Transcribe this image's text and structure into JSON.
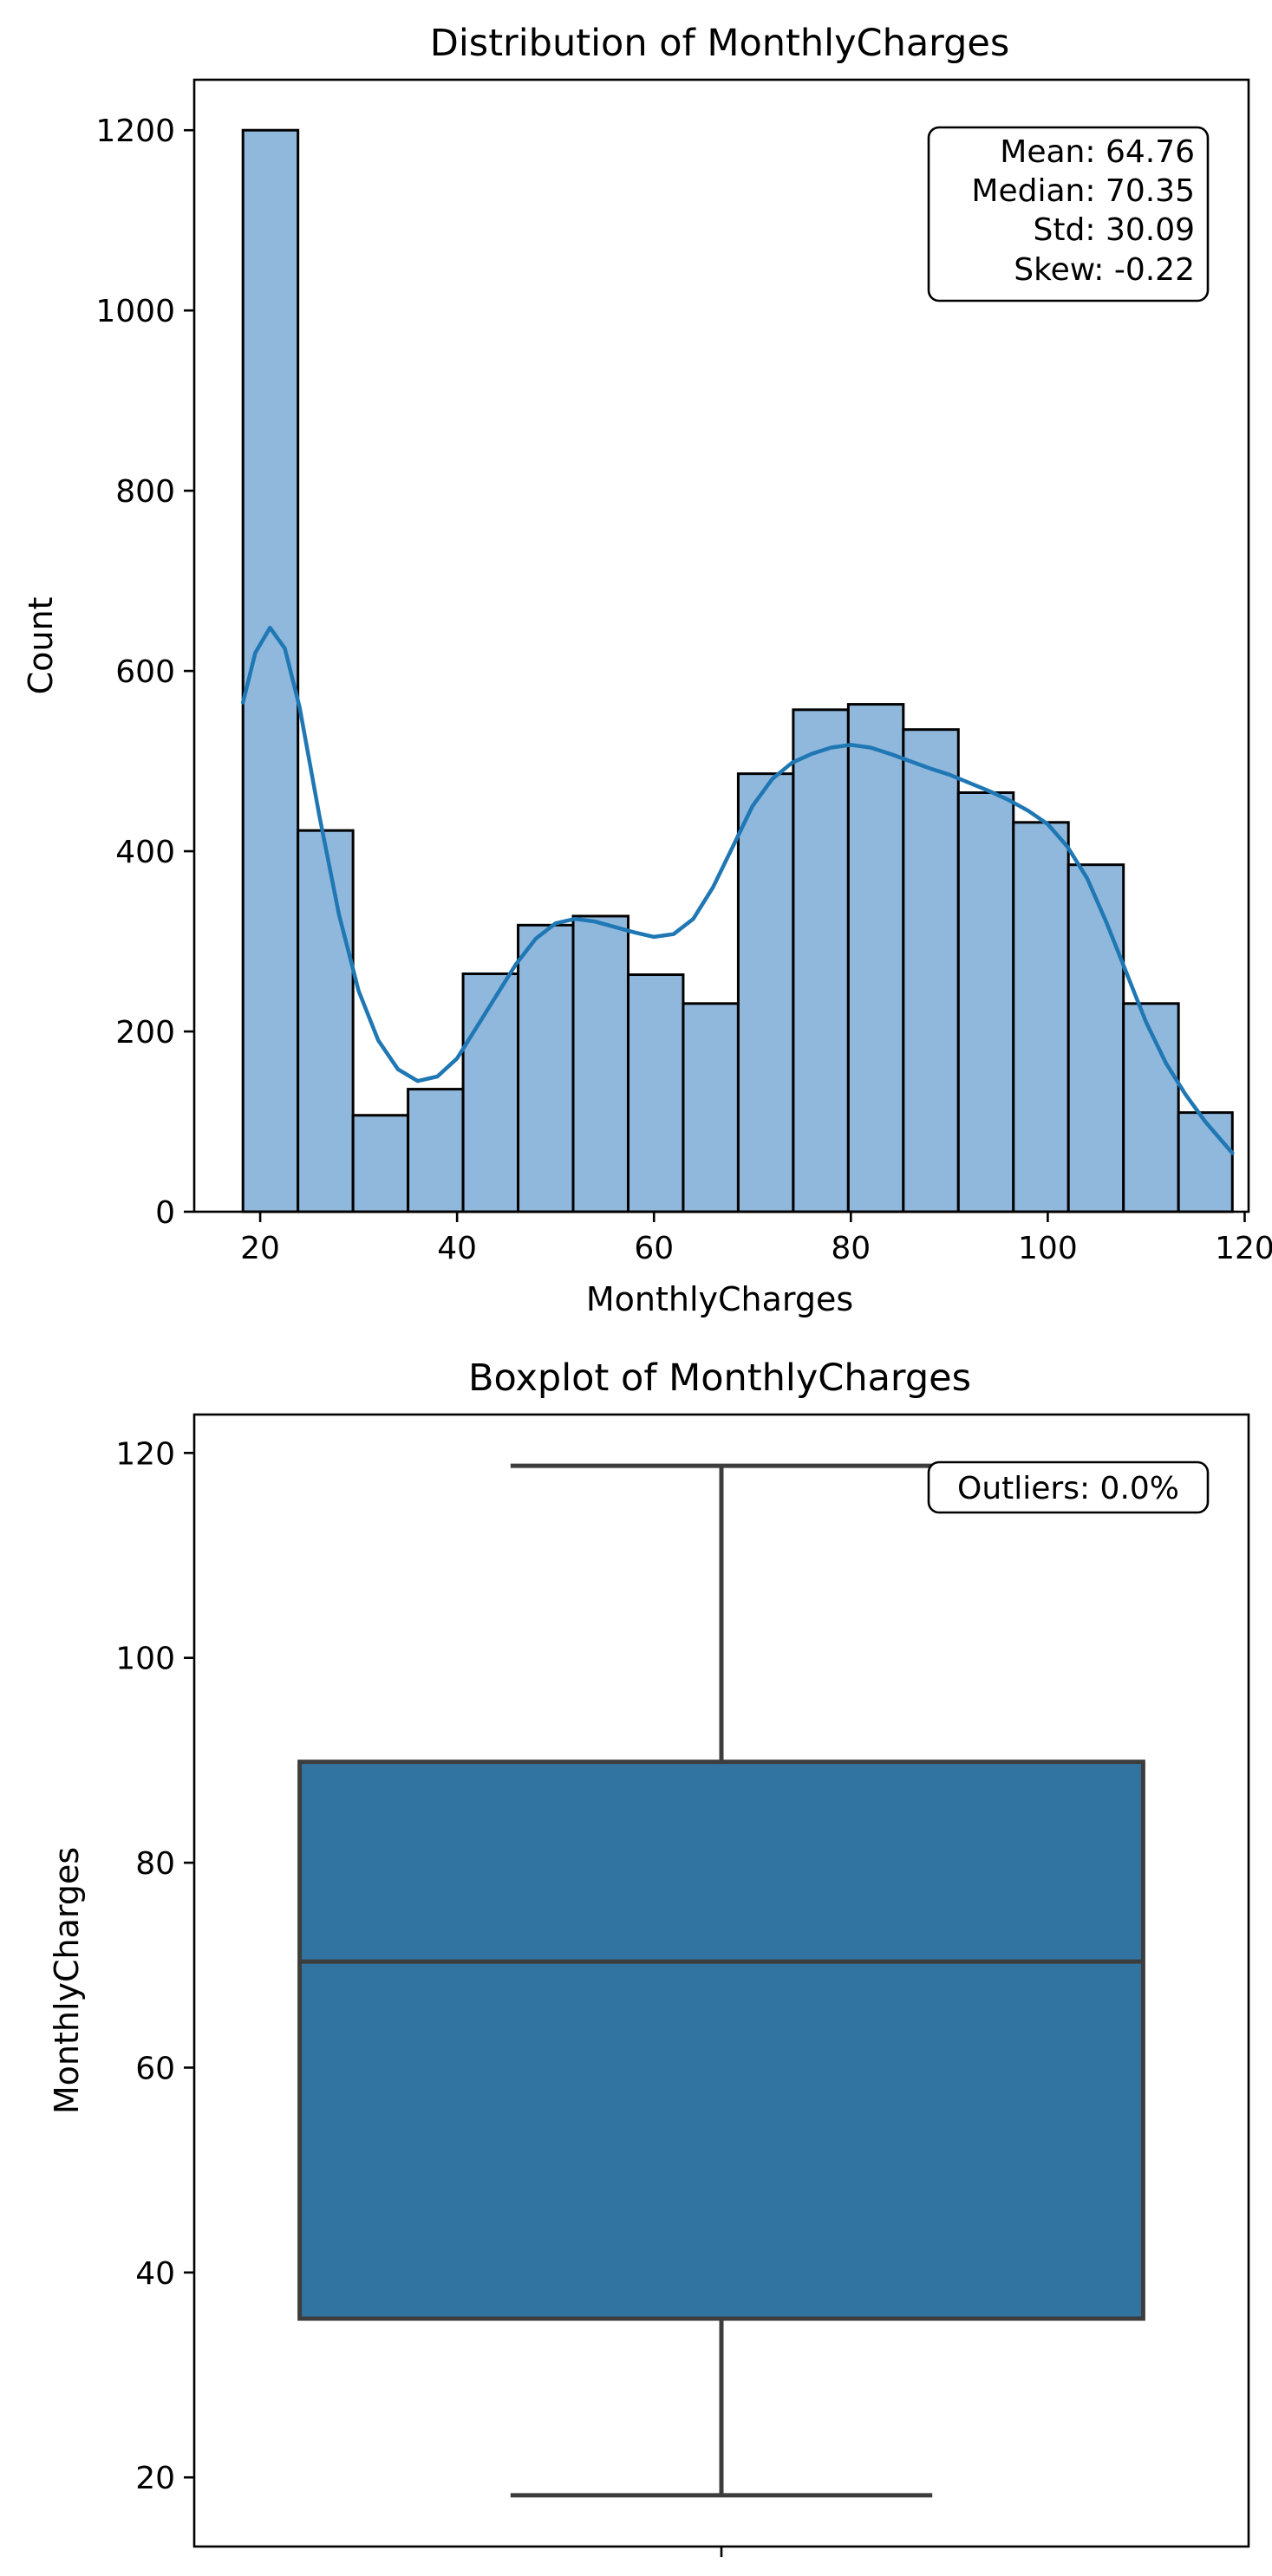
{
  "chart_data": [
    {
      "type": "bar",
      "title": "Distribution of MonthlyCharges",
      "xlabel": "MonthlyCharges",
      "ylabel": "Count",
      "xlim": [
        13.3,
        120.4
      ],
      "ylim": [
        0,
        1256
      ],
      "xticks": [
        20,
        40,
        60,
        80,
        100,
        120
      ],
      "yticks": [
        0,
        200,
        400,
        600,
        800,
        1000,
        1200
      ],
      "bin_edges": [
        18.25,
        23.84,
        29.43,
        35.02,
        40.61,
        46.2,
        51.79,
        57.38,
        62.97,
        68.56,
        74.15,
        79.74,
        85.33,
        90.92,
        96.51,
        102.1,
        107.69,
        113.28,
        118.75
      ],
      "values": [
        1200,
        423,
        107,
        136,
        264,
        318,
        328,
        263,
        231,
        486,
        557,
        563,
        535,
        465,
        432,
        385,
        231,
        110
      ],
      "kde": {
        "x": [
          18.25,
          19.5,
          21,
          22.5,
          24,
          26,
          28,
          30,
          32,
          34,
          36,
          38,
          40,
          42,
          44,
          46,
          48,
          50,
          52,
          54,
          56,
          58,
          60,
          62,
          64,
          66,
          68,
          70,
          72,
          74,
          76,
          78,
          80,
          82,
          84,
          86,
          88,
          90,
          92,
          94,
          96,
          98,
          100,
          102,
          104,
          106,
          108,
          110,
          112,
          114,
          116,
          118.75
        ],
        "y": [
          565,
          620,
          648,
          625,
          560,
          440,
          330,
          245,
          190,
          158,
          145,
          150,
          170,
          205,
          240,
          275,
          303,
          320,
          325,
          322,
          316,
          310,
          305,
          308,
          325,
          360,
          405,
          450,
          480,
          498,
          508,
          515,
          518,
          515,
          508,
          500,
          492,
          485,
          476,
          467,
          457,
          445,
          430,
          405,
          370,
          320,
          265,
          210,
          165,
          130,
          100,
          65
        ]
      },
      "stats_box": [
        "Mean: 64.76",
        "Median: 70.35",
        "Std: 30.09",
        "Skew: -0.22"
      ],
      "legend": "none",
      "grid": false
    },
    {
      "type": "box",
      "title": "Boxplot of MonthlyCharges",
      "xlabel": "",
      "ylabel": "MonthlyCharges",
      "ylim": [
        13.25,
        123.75
      ],
      "yticks": [
        20,
        40,
        60,
        80,
        100,
        120
      ],
      "whisker_low": 18.25,
      "q1": 35.5,
      "median": 70.35,
      "q3": 89.85,
      "whisker_high": 118.75,
      "box_color": "#3274a1",
      "annotation": "Outliers: 0.0%",
      "grid": false
    }
  ],
  "colors": {
    "bar_fill": "#8fb8dc",
    "kde_line": "#1f77b4",
    "box_fill": "#3274a1",
    "box_edge": "#3d3d3d"
  }
}
